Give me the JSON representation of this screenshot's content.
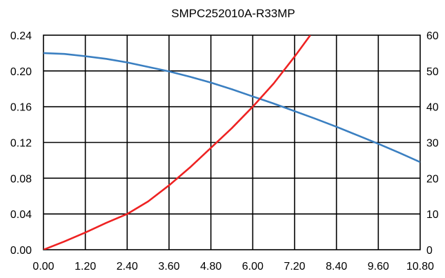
{
  "chart_data": {
    "type": "line",
    "title": "SMPC252010A-R33MP",
    "xlabel": "",
    "ylabel": "",
    "y2label": "",
    "x_ticks": [
      "0.00",
      "1.20",
      "2.40",
      "3.60",
      "4.80",
      "6.00",
      "7.20",
      "8.40",
      "9.60",
      "10.80"
    ],
    "xlim": [
      0,
      10.8
    ],
    "y_ticks": [
      "0.00",
      "0.04",
      "0.08",
      "0.12",
      "0.16",
      "0.20",
      "0.24"
    ],
    "ylim": [
      0,
      0.24
    ],
    "y2_ticks": [
      "0",
      "10",
      "20",
      "30",
      "40",
      "50",
      "60"
    ],
    "y2lim": [
      0,
      60
    ],
    "grid": true,
    "series": [
      {
        "axis": "left",
        "color": "#3a7fc1",
        "x": [
          0,
          0.6,
          1.2,
          1.8,
          2.4,
          3.0,
          3.6,
          4.2,
          4.8,
          5.4,
          6.0,
          6.6,
          7.2,
          7.8,
          8.4,
          9.0,
          9.6,
          10.2,
          10.8
        ],
        "y": [
          0.22,
          0.219,
          0.2165,
          0.2135,
          0.2095,
          0.2045,
          0.1995,
          0.1935,
          0.187,
          0.1795,
          0.1715,
          0.1635,
          0.155,
          0.1465,
          0.1375,
          0.128,
          0.1185,
          0.1085,
          0.098
        ]
      },
      {
        "axis": "right",
        "color": "#ee2222",
        "x": [
          0,
          0.6,
          1.2,
          1.8,
          2.4,
          3.0,
          3.6,
          4.2,
          4.8,
          5.4,
          6.0,
          6.6,
          7.2,
          7.65
        ],
        "y": [
          0,
          2.3,
          4.8,
          7.5,
          10,
          13.5,
          18,
          23,
          28.5,
          34,
          40,
          46.5,
          54,
          60
        ]
      }
    ]
  }
}
